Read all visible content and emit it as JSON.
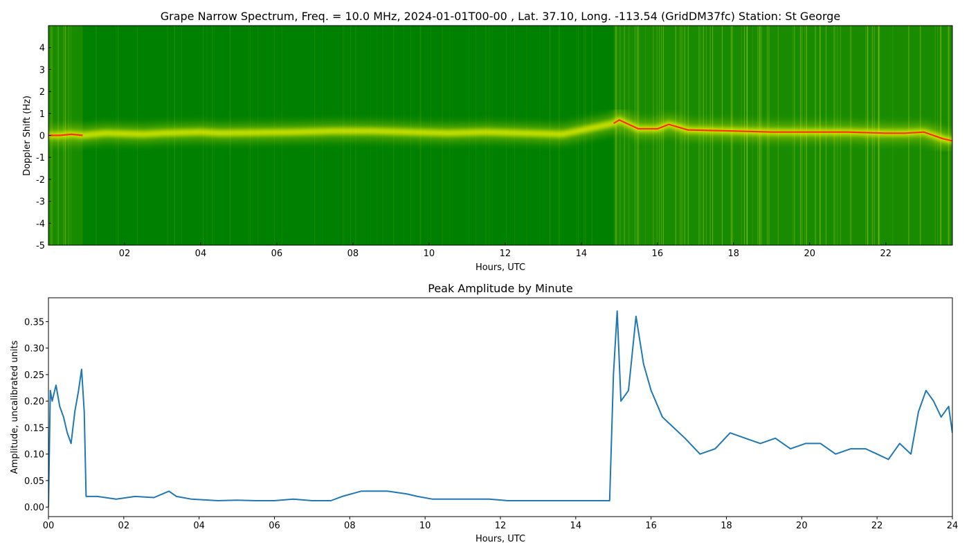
{
  "chart_data": [
    {
      "type": "heatmap",
      "title": "Grape Narrow Spectrum, Freq. = 10.0 MHz, 2024-01-01T00-00 , Lat.  37.10, Long. -113.54 (GridDM37fc) Station: St George",
      "xlabel": "Hours, UTC",
      "ylabel": "Doppler Shift (Hz)",
      "xlim": [
        0,
        23.75
      ],
      "ylim": [
        -5,
        5
      ],
      "x_ticks": [
        "02",
        "04",
        "06",
        "08",
        "10",
        "12",
        "14",
        "16",
        "18",
        "20",
        "22"
      ],
      "y_ticks": [
        "-5",
        "-4",
        "-3",
        "-2",
        "-1",
        "0",
        "1",
        "2",
        "3",
        "4"
      ],
      "colors": {
        "background": "#008000",
        "mid": "#e8f000",
        "peak": "#ff3000"
      },
      "doppler_trace": {
        "x": [
          0,
          0.3,
          0.6,
          0.9,
          1.5,
          2.5,
          3.0,
          4.0,
          4.5,
          6.5,
          7.5,
          8.5,
          9.5,
          10.5,
          11.5,
          13.5,
          14.85,
          15.0,
          15.5,
          16.0,
          16.3,
          16.8,
          18,
          19,
          20,
          21,
          22,
          22.5,
          23,
          23.5,
          23.75
        ],
        "y": [
          0.0,
          0.0,
          0.05,
          0.0,
          0.1,
          0.05,
          0.1,
          0.15,
          0.1,
          0.15,
          0.2,
          0.2,
          0.15,
          0.1,
          0.15,
          0.05,
          0.55,
          0.7,
          0.3,
          0.3,
          0.5,
          0.25,
          0.2,
          0.15,
          0.15,
          0.15,
          0.1,
          0.1,
          0.15,
          -0.15,
          -0.25
        ]
      }
    },
    {
      "type": "line",
      "title": "Peak Amplitude by Minute",
      "xlabel": "Hours, UTC",
      "ylabel": "Amplitude, uncalibrated units",
      "xlim": [
        0,
        24
      ],
      "ylim": [
        -0.018,
        0.395
      ],
      "x_ticks": [
        "00",
        "02",
        "04",
        "06",
        "08",
        "10",
        "12",
        "14",
        "16",
        "18",
        "20",
        "22",
        "24"
      ],
      "y_ticks": [
        "0.00",
        "0.05",
        "0.10",
        "0.15",
        "0.20",
        "0.25",
        "0.30",
        "0.35"
      ],
      "series_color": "#1f77b4",
      "x": [
        0,
        0.05,
        0.1,
        0.2,
        0.3,
        0.4,
        0.5,
        0.6,
        0.7,
        0.8,
        0.88,
        0.95,
        1.0,
        1.3,
        1.8,
        2.3,
        2.8,
        3.2,
        3.4,
        3.8,
        4.5,
        5.0,
        5.5,
        6.0,
        6.5,
        7.0,
        7.5,
        7.8,
        8.3,
        8.6,
        9.0,
        9.5,
        9.8,
        10.2,
        10.7,
        11.2,
        11.7,
        12.2,
        12.7,
        13.2,
        13.7,
        14.2,
        14.6,
        14.9,
        15.0,
        15.1,
        15.2,
        15.4,
        15.6,
        15.8,
        16.0,
        16.3,
        16.6,
        16.9,
        17.3,
        17.7,
        18.1,
        18.5,
        18.9,
        19.3,
        19.7,
        20.1,
        20.5,
        20.9,
        21.3,
        21.7,
        22.0,
        22.3,
        22.6,
        22.9,
        23.1,
        23.3,
        23.5,
        23.7,
        23.9,
        24.0
      ],
      "y": [
        0.0,
        0.22,
        0.2,
        0.23,
        0.19,
        0.17,
        0.14,
        0.12,
        0.18,
        0.22,
        0.26,
        0.18,
        0.02,
        0.02,
        0.015,
        0.02,
        0.018,
        0.03,
        0.02,
        0.015,
        0.012,
        0.013,
        0.012,
        0.012,
        0.015,
        0.012,
        0.012,
        0.02,
        0.03,
        0.03,
        0.03,
        0.025,
        0.02,
        0.015,
        0.015,
        0.015,
        0.015,
        0.012,
        0.012,
        0.012,
        0.012,
        0.012,
        0.012,
        0.012,
        0.25,
        0.37,
        0.2,
        0.22,
        0.36,
        0.27,
        0.22,
        0.17,
        0.15,
        0.13,
        0.1,
        0.11,
        0.14,
        0.13,
        0.12,
        0.13,
        0.11,
        0.12,
        0.12,
        0.1,
        0.11,
        0.11,
        0.1,
        0.09,
        0.12,
        0.1,
        0.18,
        0.22,
        0.2,
        0.17,
        0.19,
        0.14
      ]
    }
  ]
}
